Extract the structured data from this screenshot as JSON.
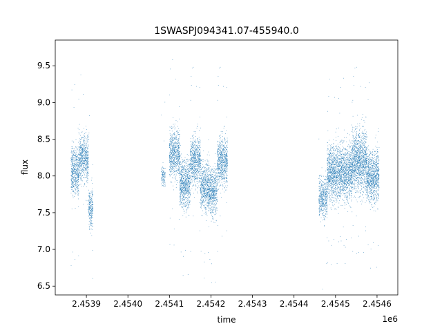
{
  "chart_data": {
    "type": "scatter",
    "title": "1SWASPJ094341.07-455940.0",
    "xlabel": "time",
    "ylabel": "flux",
    "x_offset_label": "1e6",
    "xlim": [
      2453825,
      2454650
    ],
    "ylim": [
      6.38,
      9.85
    ],
    "x_ticks": [
      {
        "value": 2453900,
        "label": "2.4539"
      },
      {
        "value": 2454000,
        "label": "2.4540"
      },
      {
        "value": 2454100,
        "label": "2.4541"
      },
      {
        "value": 2454200,
        "label": "2.4542"
      },
      {
        "value": 2454300,
        "label": "2.4543"
      },
      {
        "value": 2454400,
        "label": "2.4544"
      },
      {
        "value": 2454500,
        "label": "2.4545"
      },
      {
        "value": 2454600,
        "label": "2.4546"
      }
    ],
    "y_ticks": [
      {
        "value": 6.5,
        "label": "6.5"
      },
      {
        "value": 7.0,
        "label": "7.0"
      },
      {
        "value": 7.5,
        "label": "7.5"
      },
      {
        "value": 8.0,
        "label": "8.0"
      },
      {
        "value": 8.5,
        "label": "8.5"
      },
      {
        "value": 9.0,
        "label": "9.0"
      },
      {
        "value": 9.5,
        "label": "9.5"
      }
    ],
    "grid": false,
    "marker_color": "#1f77b4",
    "clusters": [
      {
        "x_start": 2453863,
        "x_end": 2453882,
        "y_center": 8.05,
        "y_spread": 0.3
      },
      {
        "x_start": 2453882,
        "x_end": 2453905,
        "y_center": 8.25,
        "y_spread": 0.28
      },
      {
        "x_start": 2453905,
        "x_end": 2453916,
        "y_center": 7.55,
        "y_spread": 0.25
      },
      {
        "x_start": 2454080,
        "x_end": 2454090,
        "y_center": 8.0,
        "y_spread": 0.12
      },
      {
        "x_start": 2454100,
        "x_end": 2454125,
        "y_center": 8.3,
        "y_spread": 0.3
      },
      {
        "x_start": 2454125,
        "x_end": 2454150,
        "y_center": 7.9,
        "y_spread": 0.32
      },
      {
        "x_start": 2454150,
        "x_end": 2454175,
        "y_center": 8.2,
        "y_spread": 0.3
      },
      {
        "x_start": 2454175,
        "x_end": 2454195,
        "y_center": 7.85,
        "y_spread": 0.3
      },
      {
        "x_start": 2454195,
        "x_end": 2454215,
        "y_center": 7.8,
        "y_spread": 0.3
      },
      {
        "x_start": 2454215,
        "x_end": 2454240,
        "y_center": 8.2,
        "y_spread": 0.3
      },
      {
        "x_start": 2454460,
        "x_end": 2454480,
        "y_center": 7.7,
        "y_spread": 0.25
      },
      {
        "x_start": 2454480,
        "x_end": 2454510,
        "y_center": 8.05,
        "y_spread": 0.35
      },
      {
        "x_start": 2454510,
        "x_end": 2454540,
        "y_center": 8.05,
        "y_spread": 0.35
      },
      {
        "x_start": 2454540,
        "x_end": 2454575,
        "y_center": 8.2,
        "y_spread": 0.38
      },
      {
        "x_start": 2454575,
        "x_end": 2454605,
        "y_center": 8.0,
        "y_spread": 0.33
      }
    ]
  }
}
